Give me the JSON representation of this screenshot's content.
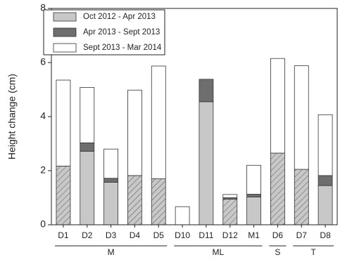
{
  "chart_data": {
    "type": "stacked-bar",
    "y_label": "Height change (cm)",
    "categories": [
      "D1",
      "D2",
      "D3",
      "D4",
      "D5",
      "D10",
      "D11",
      "D12",
      "M1",
      "D6",
      "D7",
      "D8"
    ],
    "series": [
      {
        "name": "Oct 2012 - Apr 2013",
        "color": "#c8c8c8",
        "values": [
          2.17,
          2.72,
          1.57,
          1.82,
          1.7,
          null,
          4.55,
          0.95,
          1.03,
          2.65,
          2.05,
          1.45
        ]
      },
      {
        "name": "Apr 2013 - Sept 2013",
        "color": "#6e6e6e",
        "values": [
          null,
          0.31,
          0.15,
          null,
          null,
          null,
          0.83,
          0.05,
          0.1,
          null,
          null,
          0.37
        ]
      },
      {
        "name": "Sept 2013 - Mar 2014",
        "color": "#ffffff",
        "values": [
          3.18,
          2.05,
          1.08,
          3.16,
          4.17,
          0.67,
          null,
          0.12,
          1.07,
          3.5,
          3.83,
          2.25
        ]
      }
    ],
    "hatched": [
      true,
      false,
      false,
      true,
      true,
      false,
      false,
      true,
      false,
      true,
      true,
      false
    ],
    "groups": [
      {
        "label": "M",
        "start": 0,
        "end": 4
      },
      {
        "label": "ML",
        "start": 5,
        "end": 8
      },
      {
        "label": "S",
        "start": 9,
        "end": 9
      },
      {
        "label": "T",
        "start": 10,
        "end": 11
      }
    ],
    "ylim": [
      0,
      8
    ],
    "yticks": [
      0,
      2,
      4,
      6,
      8
    ],
    "legend": "upper left"
  }
}
